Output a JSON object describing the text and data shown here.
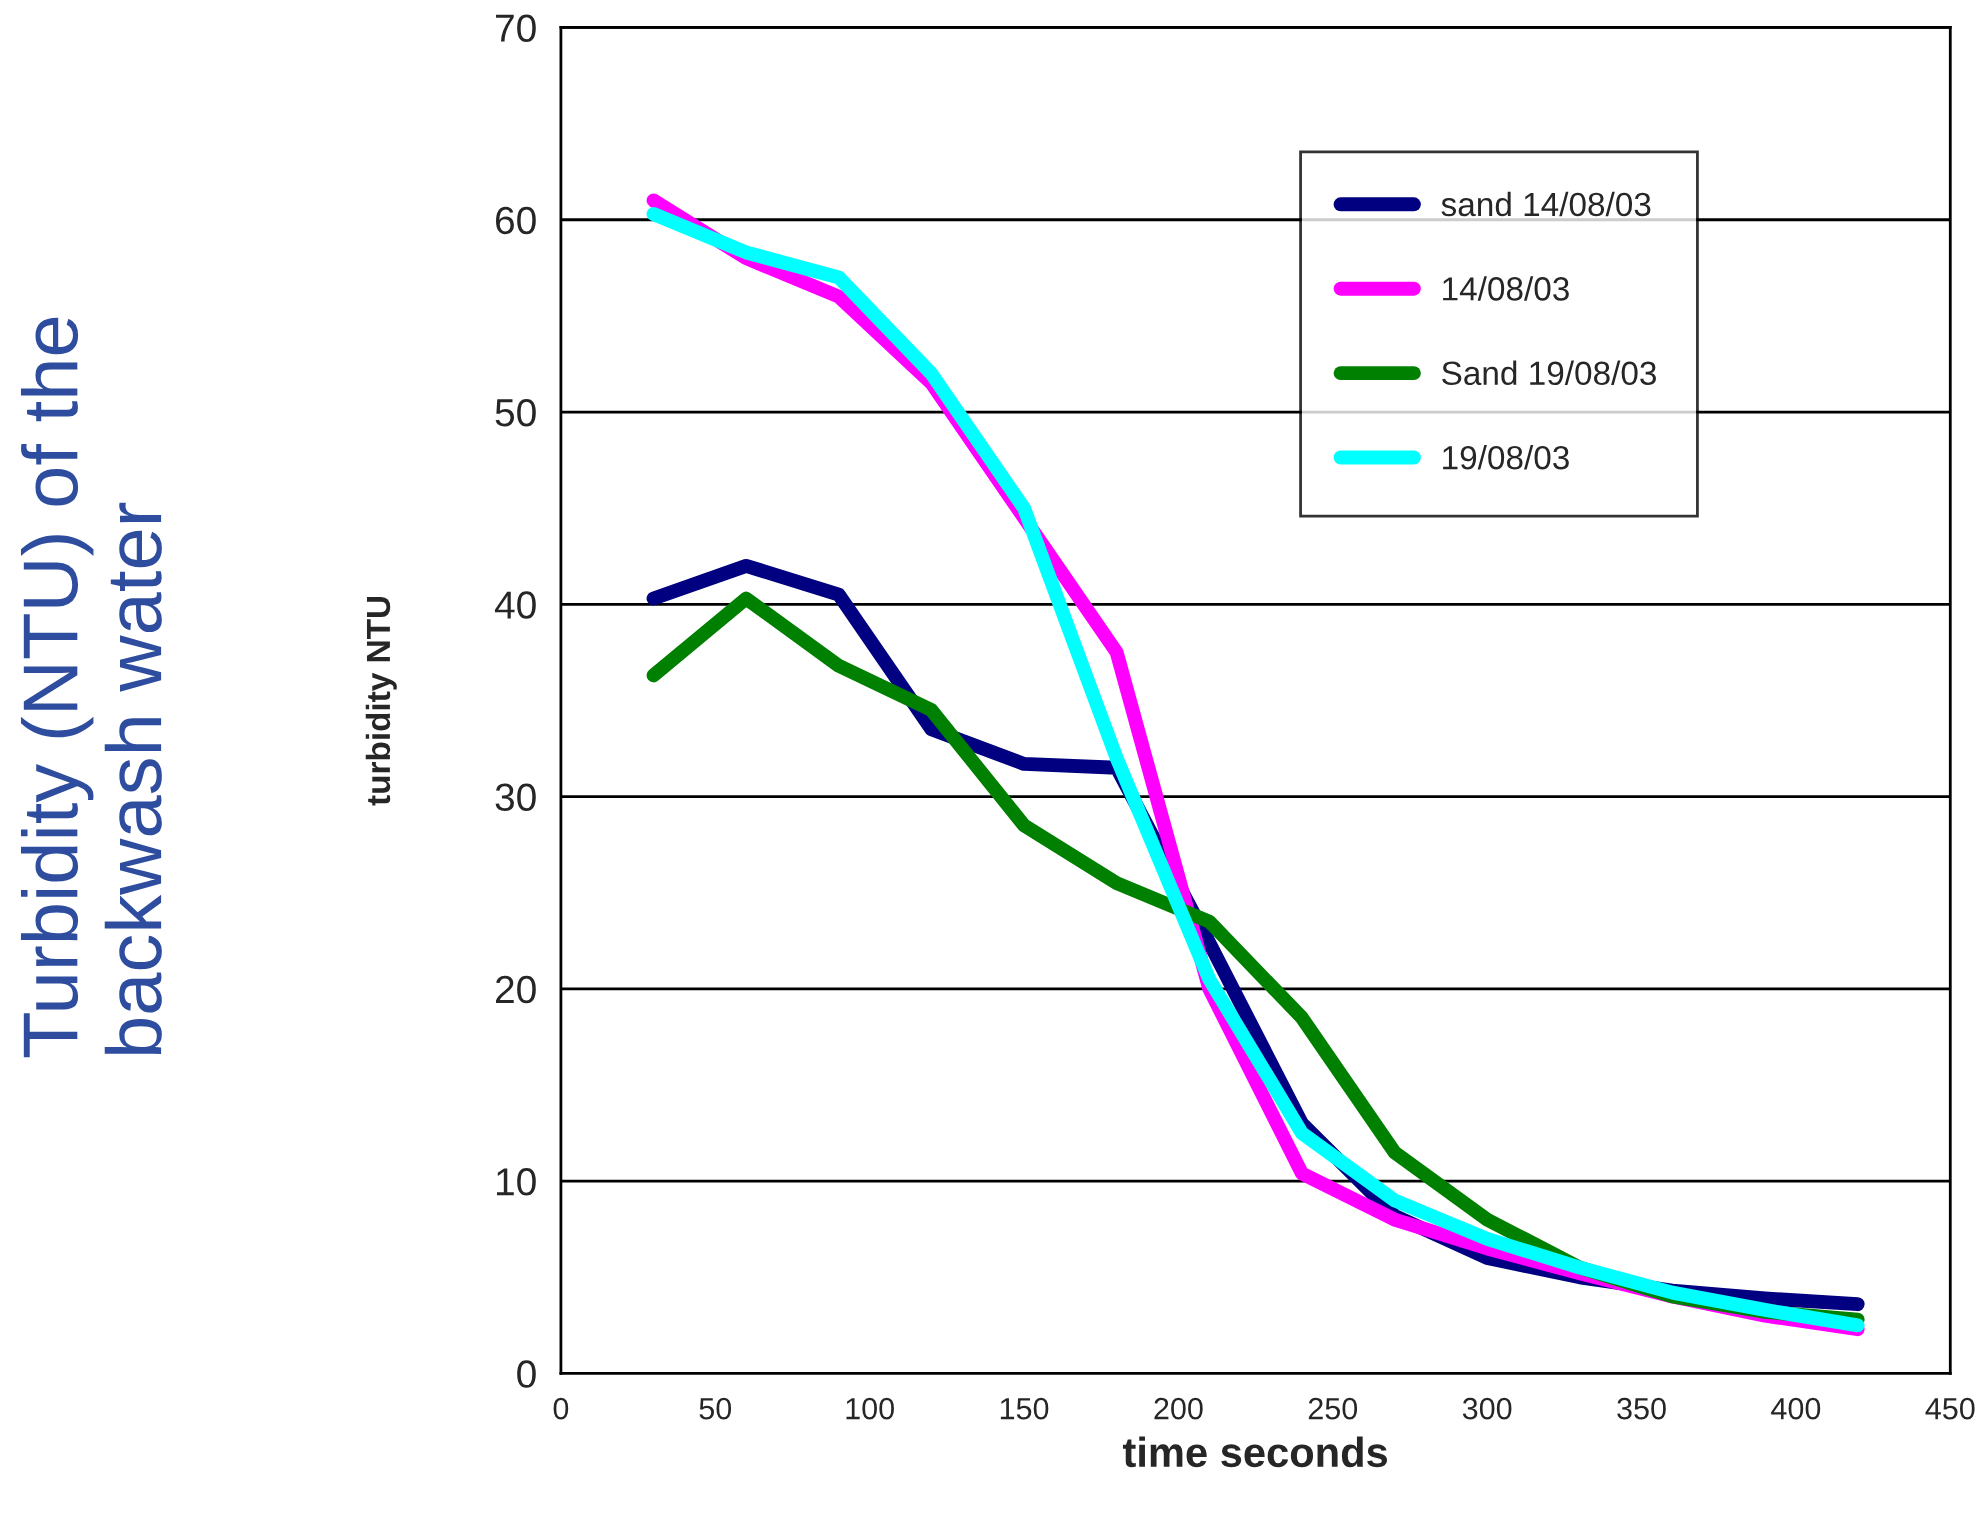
{
  "chart_data": {
    "type": "line",
    "xlabel": "time seconds",
    "ylabel": "turbidity NTU",
    "annotations": [
      "Turbidity (NTU) of the\nbackwash water"
    ],
    "x": [
      30,
      60,
      90,
      120,
      150,
      180,
      210,
      240,
      270,
      300,
      330,
      360,
      390,
      420
    ],
    "series": [
      {
        "name": "sand 14/08/03",
        "color": "#000080",
        "values": [
          40.3,
          42,
          40.5,
          33.5,
          31.7,
          31.5,
          22.4,
          13,
          8.2,
          6,
          5,
          4.3,
          3.9,
          3.6
        ]
      },
      {
        "name": "14/08/03",
        "color": "#ff00ff",
        "values": [
          61,
          58,
          56,
          51.5,
          44.5,
          37.5,
          20,
          10.4,
          8,
          6.5,
          5.2,
          4,
          3,
          2.3
        ]
      },
      {
        "name": "Sand 19/08/03",
        "color": "#008000",
        "values": [
          36.3,
          40.3,
          36.8,
          34.5,
          28.5,
          25.5,
          23.5,
          18.5,
          11.5,
          8,
          5.5,
          4,
          3.2,
          2.8
        ]
      },
      {
        "name": "19/08/03",
        "color": "#00ffff",
        "values": [
          60.3,
          58.3,
          57,
          52,
          45,
          32,
          20.5,
          12.5,
          9,
          7,
          5.5,
          4.2,
          3.3,
          2.5
        ]
      }
    ],
    "xlim": [
      0,
      450
    ],
    "xticks": [
      0,
      50,
      100,
      150,
      200,
      250,
      300,
      350,
      400,
      450
    ],
    "ylim": [
      0,
      70
    ],
    "yticks": [
      0,
      10,
      20,
      30,
      40,
      50,
      60,
      70
    ],
    "grid": "y",
    "legend": "top right",
    "marker": "none",
    "line_style": "solid"
  }
}
